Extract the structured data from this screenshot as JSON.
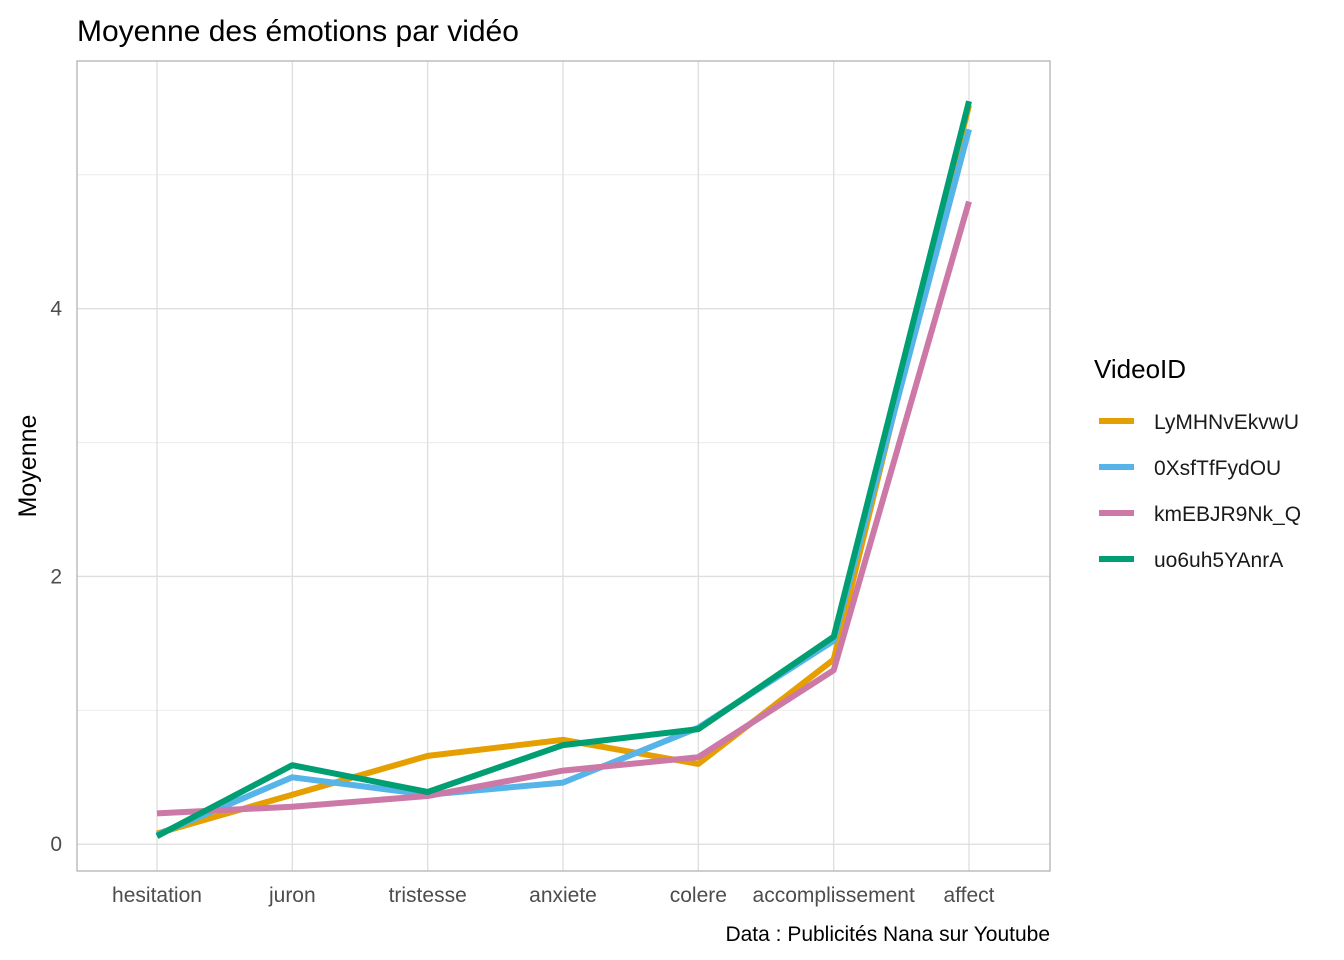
{
  "chart_data": {
    "type": "line",
    "title": "Moyenne des émotions par vidéo",
    "xlabel": "",
    "ylabel": "Moyenne",
    "caption": "Data : Publicités Nana sur Youtube",
    "categories": [
      "hesitation",
      "juron",
      "tristesse",
      "anxiete",
      "colere",
      "accomplissement",
      "affect"
    ],
    "yticks": [
      0,
      2,
      4
    ],
    "ylim": [
      -0.2,
      5.85
    ],
    "grid": true,
    "legend": {
      "title": "VideoID",
      "placement": "right"
    },
    "series": [
      {
        "name": "LyMHNvEkvwU",
        "color": "#E69F00",
        "values": [
          0.08,
          0.37,
          0.66,
          0.78,
          0.6,
          1.38,
          5.52
        ]
      },
      {
        "name": "0XsfTfFydOU",
        "color": "#56B4E9",
        "values": [
          0.07,
          0.5,
          0.37,
          0.46,
          0.87,
          1.52,
          5.34
        ]
      },
      {
        "name": "kmEBJR9Nk_Q",
        "color": "#CC79A7",
        "values": [
          0.23,
          0.28,
          0.36,
          0.55,
          0.65,
          1.3,
          4.8
        ]
      },
      {
        "name": "uo6uh5YAnrA",
        "color": "#009E73",
        "values": [
          0.06,
          0.59,
          0.39,
          0.74,
          0.86,
          1.55,
          5.55
        ]
      }
    ]
  }
}
